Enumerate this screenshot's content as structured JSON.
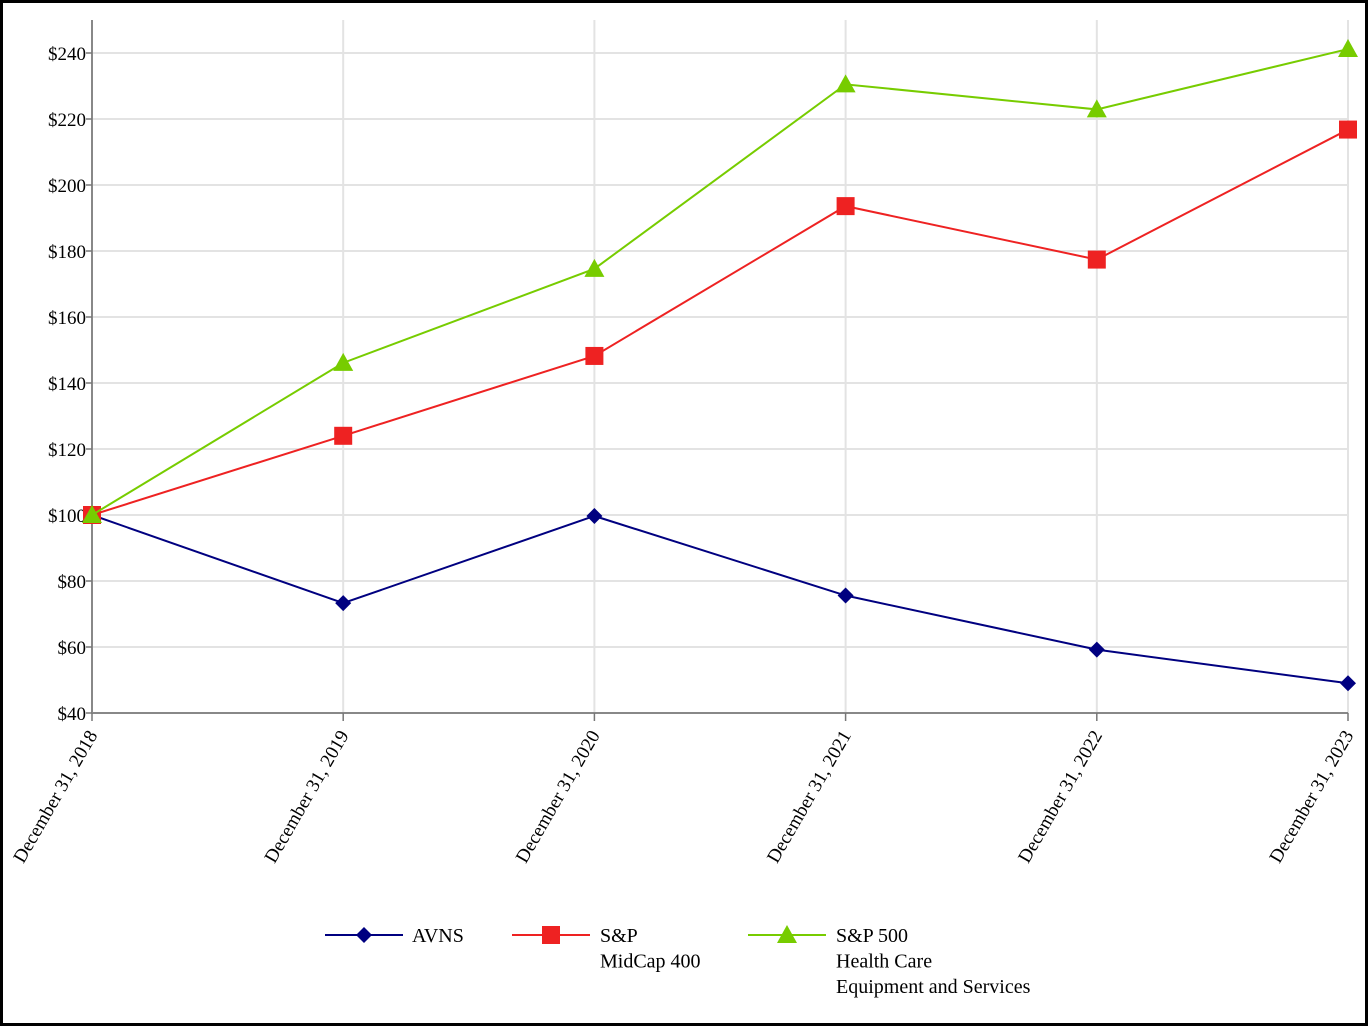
{
  "chart_data": {
    "type": "line",
    "title": "",
    "xlabel": "",
    "ylabel": "",
    "categories": [
      "December 31, 2018",
      "December 31, 2019",
      "December 31, 2020",
      "December 31, 2021",
      "December 31, 2022",
      "December 31, 2023"
    ],
    "ylim": [
      40,
      250
    ],
    "yticks": [
      40,
      60,
      80,
      100,
      120,
      140,
      160,
      180,
      200,
      220,
      240
    ],
    "ytick_labels": [
      "$40",
      "$60",
      "$80",
      "$100",
      "$120",
      "$140",
      "$160",
      "$180",
      "$200",
      "$220",
      "$240"
    ],
    "grid": true,
    "legend_position": "bottom",
    "series": [
      {
        "name": "AVNS",
        "legend_lines": [
          "AVNS"
        ],
        "color": "#000080",
        "marker": "diamond",
        "values": [
          100,
          73.3,
          99.7,
          75.6,
          59.2,
          49.0
        ]
      },
      {
        "name": "S&P MidCap 400",
        "legend_lines": [
          "S&P",
          "MidCap 400"
        ],
        "color": "#ee2222",
        "marker": "square",
        "values": [
          100,
          124.0,
          148.2,
          193.6,
          177.4,
          216.8
        ]
      },
      {
        "name": "S&P 500 Health Care Equipment and Services",
        "legend_lines": [
          "S&P 500",
          "Health Care",
          "Equipment and Services"
        ],
        "color": "#77cc00",
        "marker": "triangle",
        "values": [
          100,
          146.1,
          174.6,
          230.5,
          222.9,
          241.2
        ]
      }
    ]
  }
}
